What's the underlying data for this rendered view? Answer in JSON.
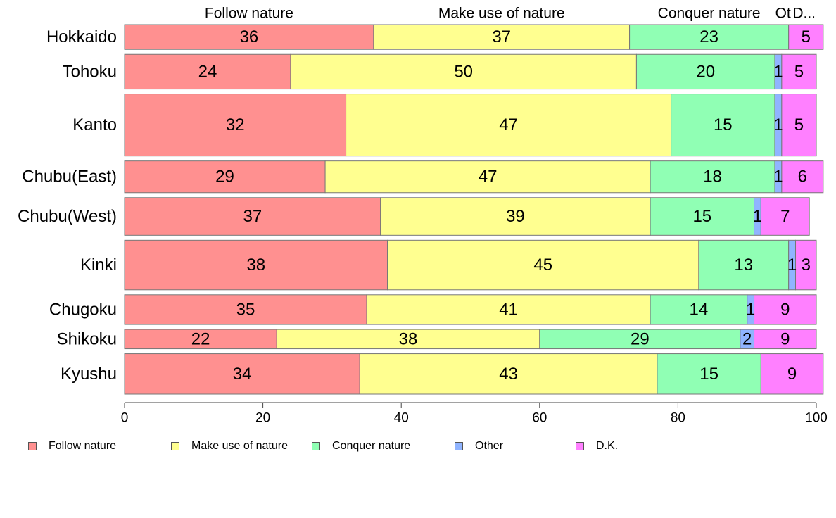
{
  "chart_data": {
    "type": "bar",
    "orientation": "horizontal",
    "stacked": true,
    "categories": [
      "Hokkaido",
      "Tohoku",
      "Kanto",
      "Chubu(East)",
      "Chubu(West)",
      "Kinki",
      "Chugoku",
      "Shikoku",
      "Kyushu"
    ],
    "series": [
      {
        "name": "Follow nature",
        "color": "#ff9090",
        "values": [
          36,
          24,
          32,
          29,
          37,
          38,
          35,
          22,
          34
        ],
        "labels": [
          "36",
          "24",
          "32",
          "29",
          "37",
          "38",
          "35",
          "22",
          "34"
        ]
      },
      {
        "name": "Make use of nature",
        "color": "#ffff90",
        "values": [
          37,
          50,
          47,
          47,
          39,
          45,
          41,
          38,
          43
        ],
        "labels": [
          "37",
          "50",
          "47",
          "47",
          "39",
          "45",
          "41",
          "38",
          "43"
        ]
      },
      {
        "name": "Conquer nature",
        "color": "#90ffb4",
        "values": [
          23,
          20,
          15,
          18,
          15,
          13,
          14,
          29,
          15
        ],
        "labels": [
          "23",
          "20",
          "15",
          "18",
          "15",
          "13",
          "14",
          "29",
          "15"
        ]
      },
      {
        "name": "Other",
        "color": "#90b4ff",
        "values": [
          0,
          1,
          1,
          1,
          1,
          1,
          1,
          2,
          0
        ],
        "labels": [
          "",
          "1",
          "1",
          "1",
          "1",
          "1",
          "1",
          "2",
          ""
        ]
      },
      {
        "name": "D.K.",
        "color": "#ff80ff",
        "values": [
          5,
          5,
          5,
          6,
          7,
          3,
          9,
          9,
          9
        ],
        "labels": [
          "5",
          "5",
          "5",
          "6",
          "7",
          "3",
          "9",
          "9",
          "9"
        ]
      }
    ],
    "row_weights": [
      1.0,
      1.4,
      2.5,
      1.28,
      1.52,
      2.0,
      1.2,
      0.78,
      1.63
    ],
    "top_labels": [
      "Follow nature",
      "Make use of nature",
      "Conquer nature",
      "Ot",
      "D..."
    ],
    "xlim": [
      0,
      100
    ],
    "xticks": [
      "0",
      "20",
      "40",
      "60",
      "80",
      "100"
    ],
    "xlabel": "",
    "ylabel": "",
    "grid": false,
    "legend_position": "bottom"
  }
}
